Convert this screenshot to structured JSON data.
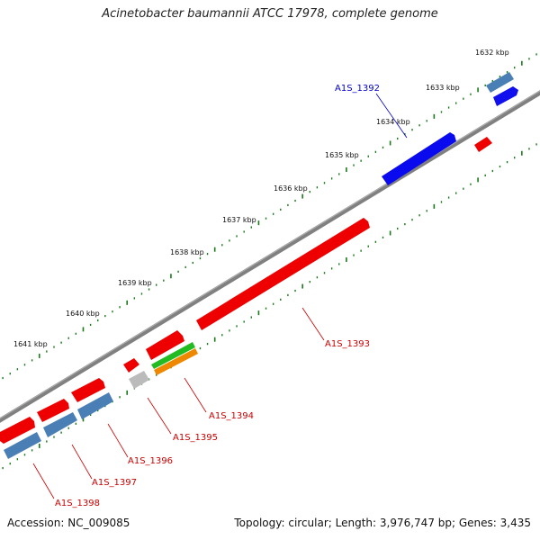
{
  "title": "Acinetobacter baumannii ATCC 17978, complete genome",
  "footer": {
    "accession": "Accession: NC_009085",
    "summary": "Topology: circular; Length: 3,976,747 bp; Genes: 3,435"
  },
  "colors": {
    "backbone": "#808080",
    "tick": "#1a7a1a",
    "gene_red": "#ee0000",
    "gene_blue": "#0000ee",
    "gene_steel": "#4a7fb5",
    "gene_green": "#22bb22",
    "gene_orange": "#ee8800",
    "gene_gray": "#bbbbbb",
    "label_red": "#cc0000",
    "label_blue": "#0000cc"
  },
  "scale_labels": [
    "1632 kbp",
    "1633 kbp",
    "1634 kbp",
    "1635 kbp",
    "1636 kbp",
    "1637 kbp",
    "1638 kbp",
    "1639 kbp",
    "1640 kbp",
    "1641 kbp"
  ],
  "gene_labels": [
    "A1S_1392",
    "A1S_1393",
    "A1S_1394",
    "A1S_1395",
    "A1S_1396",
    "A1S_1397",
    "A1S_1398"
  ]
}
